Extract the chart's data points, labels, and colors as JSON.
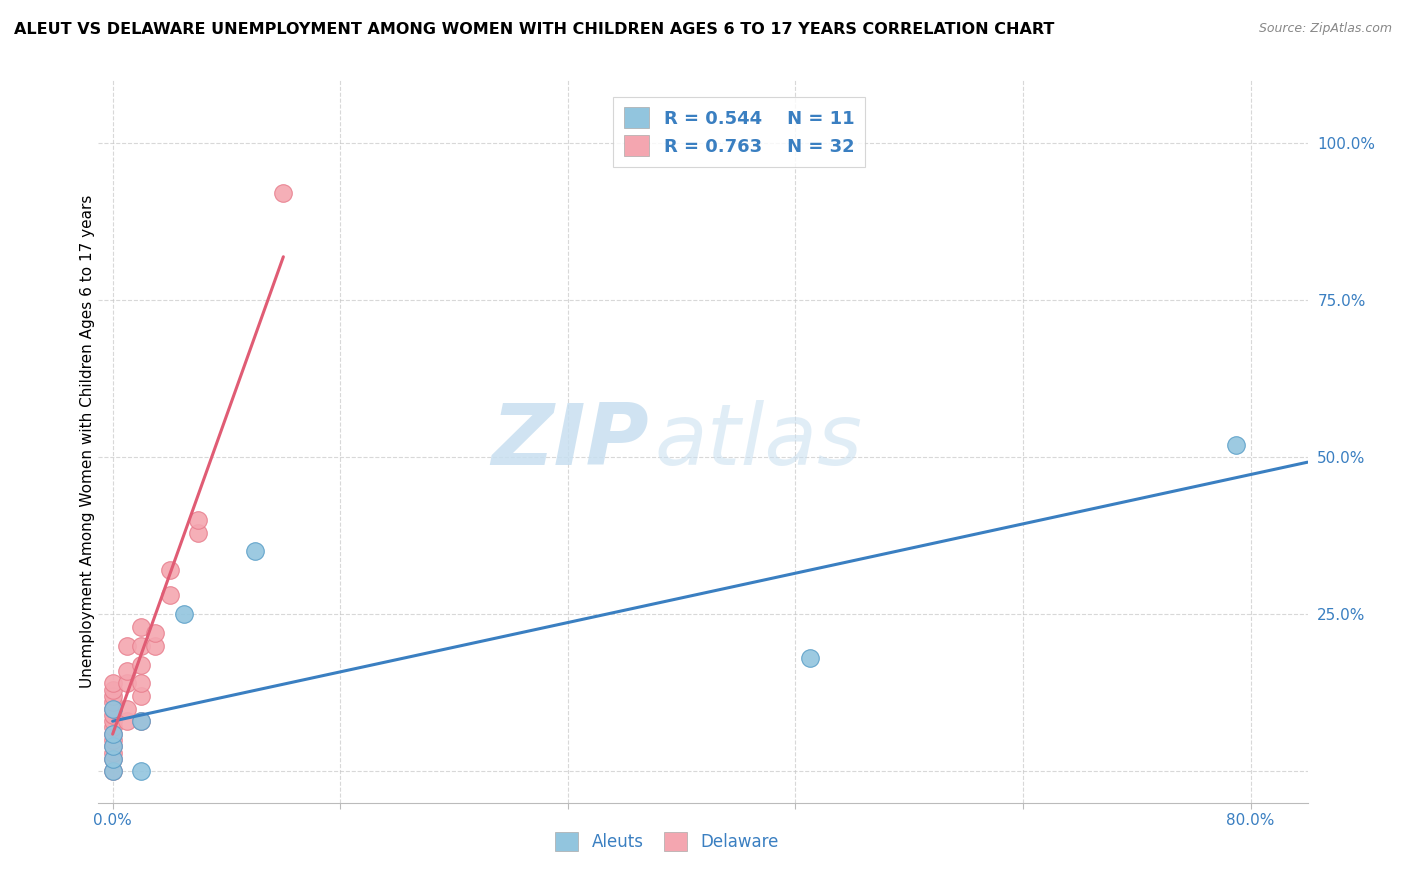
{
  "title": "ALEUT VS DELAWARE UNEMPLOYMENT AMONG WOMEN WITH CHILDREN AGES 6 TO 17 YEARS CORRELATION CHART",
  "source": "Source: ZipAtlas.com",
  "ylabel": "Unemployment Among Women with Children Ages 6 to 17 years",
  "xlim": [
    -0.01,
    0.84
  ],
  "ylim": [
    -0.05,
    1.1
  ],
  "xticks": [
    0.0,
    0.16,
    0.32,
    0.48,
    0.64,
    0.8
  ],
  "xticklabels": [
    "0.0%",
    "",
    "",
    "",
    "",
    "80.0%"
  ],
  "yticks": [
    0.0,
    0.25,
    0.5,
    0.75,
    1.0
  ],
  "yticklabels": [
    "",
    "25.0%",
    "50.0%",
    "75.0%",
    "100.0%"
  ],
  "aleuts_R": 0.544,
  "aleuts_N": 11,
  "delaware_R": 0.763,
  "delaware_N": 32,
  "aleuts_color": "#92c5de",
  "delaware_color": "#f4a6b0",
  "aleuts_edge_color": "#5b9fc8",
  "delaware_edge_color": "#e87f8e",
  "trendline_aleuts_color": "#3a7fc1",
  "trendline_delaware_color": "#e05c74",
  "aleuts_x": [
    0.0,
    0.0,
    0.0,
    0.0,
    0.0,
    0.02,
    0.02,
    0.05,
    0.1,
    0.49,
    0.79
  ],
  "aleuts_y": [
    0.0,
    0.02,
    0.04,
    0.06,
    0.1,
    0.0,
    0.08,
    0.25,
    0.35,
    0.18,
    0.52
  ],
  "delaware_x": [
    0.0,
    0.0,
    0.0,
    0.0,
    0.0,
    0.0,
    0.0,
    0.0,
    0.0,
    0.0,
    0.0,
    0.0,
    0.0,
    0.0,
    0.01,
    0.01,
    0.01,
    0.01,
    0.01,
    0.02,
    0.02,
    0.02,
    0.02,
    0.02,
    0.02,
    0.03,
    0.03,
    0.04,
    0.04,
    0.06,
    0.06,
    0.12
  ],
  "delaware_y": [
    0.0,
    0.02,
    0.03,
    0.04,
    0.05,
    0.06,
    0.07,
    0.08,
    0.09,
    0.1,
    0.11,
    0.12,
    0.13,
    0.14,
    0.08,
    0.1,
    0.14,
    0.16,
    0.2,
    0.08,
    0.12,
    0.14,
    0.17,
    0.2,
    0.23,
    0.2,
    0.22,
    0.28,
    0.32,
    0.38,
    0.4,
    0.92
  ],
  "watermark_zip": "ZIP",
  "watermark_atlas": "atlas",
  "background_color": "#ffffff",
  "grid_color": "#c8c8c8",
  "legend_fontsize": 13,
  "title_fontsize": 11.5,
  "axis_label_fontsize": 11,
  "tick_fontsize": 11,
  "tick_color": "#3a7fc1",
  "source_color": "#888888"
}
